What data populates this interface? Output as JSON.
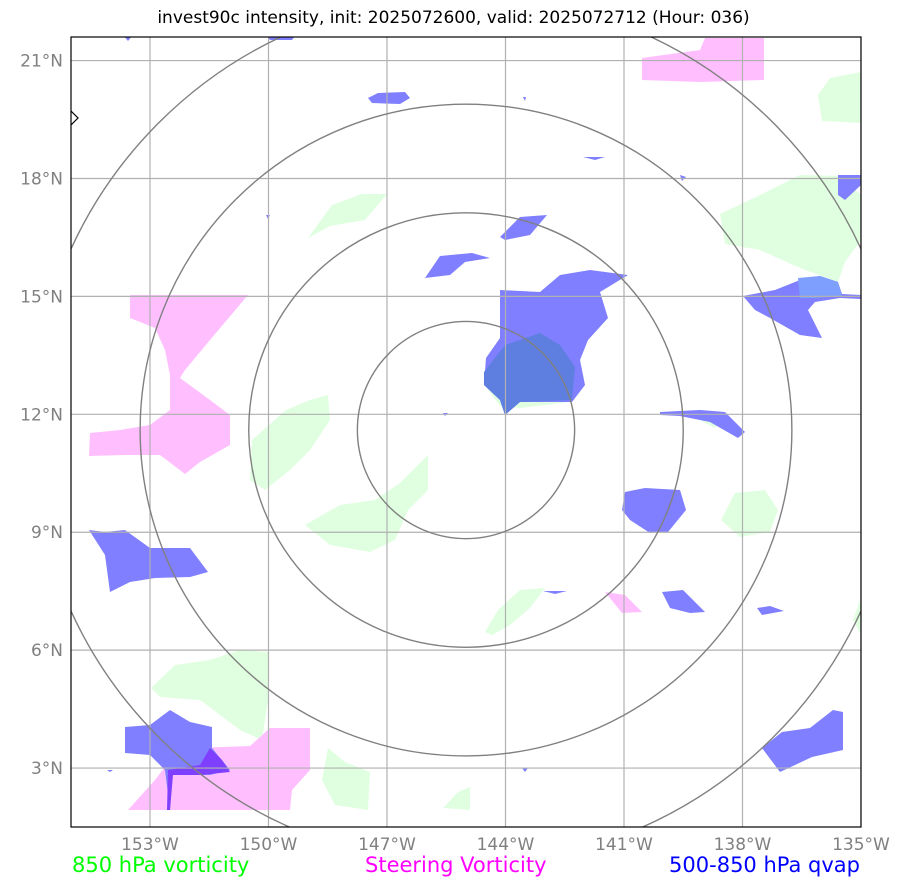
{
  "title": "invest90c intensity, init: 2025072600, valid: 2025072712 (Hour: 036)",
  "lat_labels": [
    "21°N",
    "18°N",
    "15°N",
    "12°N",
    "9°N",
    "6°N",
    "3°N"
  ],
  "lon_labels": [
    "153°W",
    "150°W",
    "147°W",
    "144°W",
    "141°W",
    "138°W",
    "135°W"
  ],
  "legend": {
    "vort850": "850 hPa vorticity",
    "steering": "Steering Vorticity",
    "qvap": "500-850 hPa qvap"
  },
  "colors": {
    "vort850": "#00ff00",
    "steering": "#ff00ff",
    "qvap": "#0000ff",
    "vort850_fill": "#e0ffe0",
    "steering_fill": "#ffbfff",
    "qvap_fill": "#7f7fff",
    "gridline": "#b0b0b0",
    "ring": "#808080"
  },
  "map": {
    "lon_range": [
      -155.0,
      -135.0
    ],
    "lat_range": [
      1.5,
      21.6
    ],
    "center_lon": -144.0,
    "center_lat": 11.6,
    "ring_radii_deg": [
      2.75,
      5.5,
      8.25,
      11.0
    ]
  }
}
